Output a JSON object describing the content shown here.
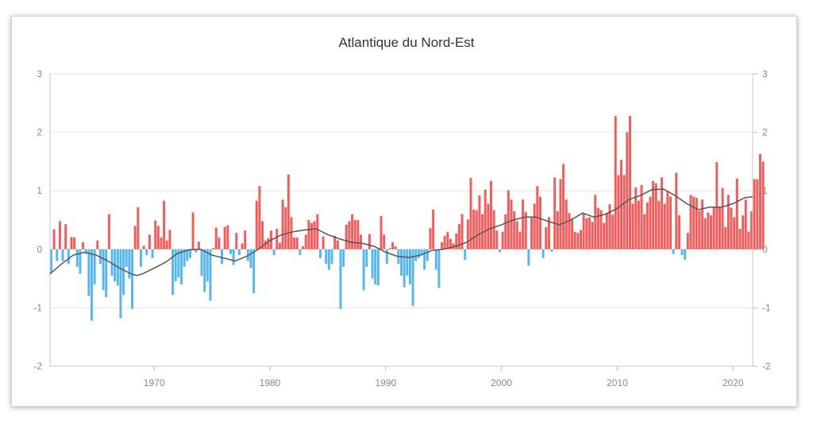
{
  "chart_data": {
    "type": "bar",
    "title": "Atlantique du Nord-Est",
    "xlabel": "",
    "ylabel": "",
    "ylim": [
      -2,
      3
    ],
    "y_ticks": [
      "3",
      "2",
      "1",
      "0",
      "-1",
      "-2"
    ],
    "x_tick_labels": [
      "1970",
      "1980",
      "1990",
      "2000",
      "2010",
      "2020"
    ],
    "x_range": [
      1961,
      2021.7
    ],
    "grid": true,
    "colors": {
      "positive": "#f75a5a",
      "negative": "#55b6f2",
      "line": "#555555"
    },
    "start_year": 1961,
    "values": [
      -0.4,
      0.34,
      -0.2,
      0.48,
      -0.2,
      0.43,
      -0.25,
      0.21,
      0.2,
      -0.3,
      -0.42,
      0.12,
      -0.08,
      -0.8,
      -1.22,
      -0.6,
      0.15,
      -0.25,
      -0.7,
      -0.82,
      0.6,
      -0.45,
      -0.55,
      -0.62,
      -1.18,
      -0.78,
      -0.3,
      -0.5,
      -1.02,
      0.4,
      0.72,
      -0.3,
      0.06,
      -0.1,
      0.25,
      -0.15,
      0.49,
      0.4,
      0.2,
      0.83,
      0.15,
      0.33,
      -0.78,
      -0.55,
      -0.48,
      -0.6,
      -0.3,
      -0.2,
      -0.15,
      0.63,
      -0.05,
      0.13,
      -0.45,
      -0.73,
      -0.55,
      -0.88,
      0.02,
      0.37,
      0.2,
      -0.25,
      0.38,
      0.41,
      -0.08,
      -0.27,
      0.28,
      -0.1,
      0.1,
      0.32,
      -0.2,
      -0.32,
      -0.75,
      0.83,
      1.08,
      0.48,
      0.15,
      0.19,
      0.32,
      -0.1,
      0.35,
      0.11,
      0.85,
      0.72,
      1.28,
      0.55,
      0.2,
      0.2,
      -0.1,
      0.05,
      0.25,
      0.5,
      0.45,
      0.48,
      0.6,
      -0.15,
      0.22,
      -0.25,
      -0.35,
      -0.25,
      0.23,
      0.15,
      -1.02,
      -0.3,
      0.42,
      0.48,
      0.6,
      0.5,
      0.5,
      0.25,
      -0.7,
      -0.3,
      0.26,
      -0.5,
      -0.6,
      -0.62,
      0.57,
      0.25,
      -0.25,
      0.02,
      0.12,
      0.05,
      -0.25,
      -0.45,
      -0.65,
      -0.45,
      -0.6,
      -0.97,
      -0.2,
      -0.15,
      -0.1,
      -0.35,
      -0.2,
      0.36,
      0.68,
      -0.35,
      -0.66,
      0.12,
      0.23,
      0.3,
      0.18,
      0.1,
      0.27,
      0.43,
      0.6,
      -0.18,
      0.51,
      1.22,
      0.68,
      0.67,
      0.92,
      0.6,
      1.02,
      0.78,
      1.17,
      0.67,
      0.32,
      -0.05,
      0.3,
      0.6,
      1.01,
      0.85,
      0.65,
      0.48,
      0.3,
      0.85,
      0.64,
      -0.28,
      0.55,
      0.78,
      1.08,
      0.9,
      -0.15,
      0.38,
      0.55,
      -0.04,
      1.23,
      0.65,
      1.2,
      1.46,
      0.85,
      0.62,
      0.53,
      0.3,
      0.28,
      0.33,
      0.62,
      0.53,
      0.55,
      0.47,
      0.93,
      0.71,
      0.67,
      0.45,
      0.62,
      0.77,
      0.59,
      2.28,
      1.27,
      1.53,
      1.27,
      2.0,
      2.28,
      0.78,
      1.06,
      0.83,
      1.1,
      0.6,
      0.8,
      0.9,
      1.17,
      1.13,
      0.83,
      1.23,
      0.78,
      1.0,
      0.9,
      -0.08,
      1.31,
      0.58,
      -0.1,
      -0.18,
      0.28,
      0.93,
      0.9,
      0.88,
      0.66,
      0.85,
      0.53,
      0.63,
      0.58,
      0.73,
      1.49,
      0.73,
      1.05,
      0.38,
      0.93,
      0.71,
      0.55,
      1.21,
      0.35,
      0.58,
      0.85,
      0.3,
      0.65,
      1.2,
      1.2,
      1.63,
      1.5
    ],
    "smoothed_line": [
      {
        "x": 1961.0,
        "y": -0.42
      },
      {
        "x": 1962.0,
        "y": -0.25
      },
      {
        "x": 1963.0,
        "y": -0.1
      },
      {
        "x": 1964.0,
        "y": -0.05
      },
      {
        "x": 1965.0,
        "y": -0.1
      },
      {
        "x": 1966.0,
        "y": -0.2
      },
      {
        "x": 1967.0,
        "y": -0.32
      },
      {
        "x": 1968.0,
        "y": -0.42
      },
      {
        "x": 1968.5,
        "y": -0.45
      },
      {
        "x": 1969.0,
        "y": -0.42
      },
      {
        "x": 1970.0,
        "y": -0.32
      },
      {
        "x": 1971.0,
        "y": -0.22
      },
      {
        "x": 1972.0,
        "y": -0.07
      },
      {
        "x": 1973.0,
        "y": -0.01
      },
      {
        "x": 1974.0,
        "y": 0.0
      },
      {
        "x": 1975.0,
        "y": -0.1
      },
      {
        "x": 1976.0,
        "y": -0.15
      },
      {
        "x": 1977.0,
        "y": -0.2
      },
      {
        "x": 1978.0,
        "y": -0.12
      },
      {
        "x": 1979.0,
        "y": 0.0
      },
      {
        "x": 1980.0,
        "y": 0.15
      },
      {
        "x": 1981.0,
        "y": 0.25
      },
      {
        "x": 1982.0,
        "y": 0.3
      },
      {
        "x": 1983.0,
        "y": 0.33
      },
      {
        "x": 1984.0,
        "y": 0.35
      },
      {
        "x": 1985.0,
        "y": 0.25
      },
      {
        "x": 1986.0,
        "y": 0.18
      },
      {
        "x": 1987.0,
        "y": 0.12
      },
      {
        "x": 1988.0,
        "y": 0.1
      },
      {
        "x": 1989.0,
        "y": 0.05
      },
      {
        "x": 1990.0,
        "y": -0.05
      },
      {
        "x": 1991.0,
        "y": -0.12
      },
      {
        "x": 1992.0,
        "y": -0.14
      },
      {
        "x": 1993.0,
        "y": -0.1
      },
      {
        "x": 1994.0,
        "y": -0.02
      },
      {
        "x": 1995.0,
        "y": 0.0
      },
      {
        "x": 1996.0,
        "y": 0.05
      },
      {
        "x": 1997.0,
        "y": 0.12
      },
      {
        "x": 1998.0,
        "y": 0.25
      },
      {
        "x": 1999.0,
        "y": 0.35
      },
      {
        "x": 2000.0,
        "y": 0.42
      },
      {
        "x": 2001.0,
        "y": 0.5
      },
      {
        "x": 2002.0,
        "y": 0.55
      },
      {
        "x": 2003.0,
        "y": 0.55
      },
      {
        "x": 2004.0,
        "y": 0.48
      },
      {
        "x": 2005.0,
        "y": 0.42
      },
      {
        "x": 2006.0,
        "y": 0.5
      },
      {
        "x": 2007.0,
        "y": 0.62
      },
      {
        "x": 2008.0,
        "y": 0.55
      },
      {
        "x": 2009.0,
        "y": 0.6
      },
      {
        "x": 2010.0,
        "y": 0.7
      },
      {
        "x": 2011.0,
        "y": 0.85
      },
      {
        "x": 2012.0,
        "y": 0.92
      },
      {
        "x": 2013.0,
        "y": 1.02
      },
      {
        "x": 2014.0,
        "y": 1.03
      },
      {
        "x": 2015.0,
        "y": 0.92
      },
      {
        "x": 2016.0,
        "y": 0.78
      },
      {
        "x": 2017.0,
        "y": 0.68
      },
      {
        "x": 2018.0,
        "y": 0.72
      },
      {
        "x": 2019.0,
        "y": 0.72
      },
      {
        "x": 2020.0,
        "y": 0.78
      },
      {
        "x": 2021.0,
        "y": 0.88
      },
      {
        "x": 2021.7,
        "y": 0.9
      }
    ]
  }
}
